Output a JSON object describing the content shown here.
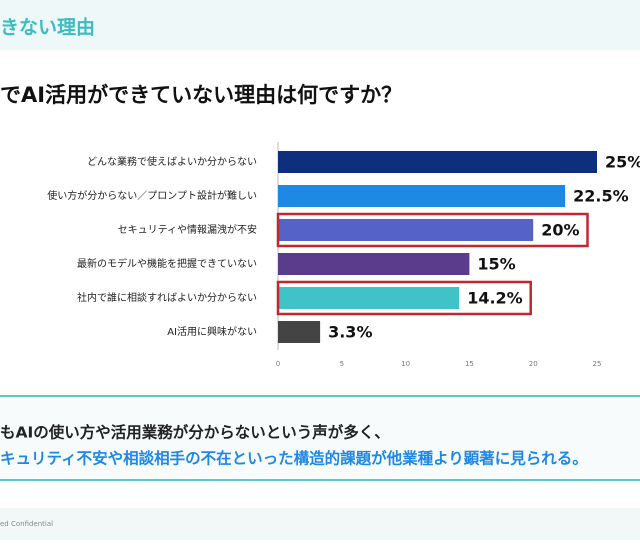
{
  "header": {
    "title": "きない理由"
  },
  "chart_data": {
    "type": "bar",
    "orientation": "horizontal",
    "title": "でAI活用ができていない理由は何ですか？",
    "categories": [
      "どんな業務で使えばよいか分からない",
      "使い方が分からない／プロンプト設計が難しい",
      "セキュリティや情報漏洩が不安",
      "最新のモデルや機能を把握できていない",
      "社内で誰に相談すればよいか分からない",
      "AI活用に興味がない"
    ],
    "values": [
      25,
      22.5,
      20,
      15,
      14.2,
      3.3
    ],
    "value_labels": [
      "25%",
      "22.5%",
      "20%",
      "15%",
      "14.2%",
      "3.3%"
    ],
    "colors": [
      "#0d2f7e",
      "#1e88e5",
      "#5563c6",
      "#5b3c8c",
      "#3fc3c9",
      "#444444"
    ],
    "highlight": [
      false,
      false,
      true,
      false,
      true,
      false
    ],
    "highlight_color": "#c0282e",
    "xlim": [
      0,
      25
    ],
    "xticks": [
      0,
      5,
      10,
      15,
      20,
      25
    ],
    "grid": false
  },
  "summary": {
    "line1": "もAIの使い方や活用業務が分からないという声が多く、",
    "line2": "キュリティ不安や相談相手の不在といった構造的課題が他業種より顕著に見られる。"
  },
  "footer": {
    "text": "ed Confidential"
  }
}
